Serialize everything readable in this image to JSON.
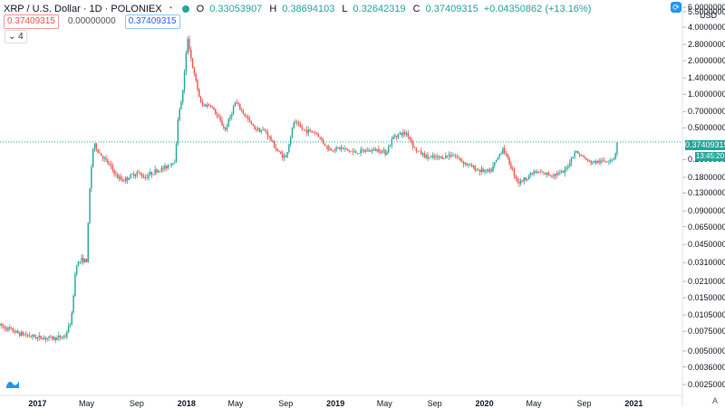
{
  "header": {
    "symbol": "XRP / U.S. Dollar · 1D · POLONIEX",
    "open_label": "O",
    "open": "0.33053907",
    "high_label": "H",
    "high": "0.38694103",
    "low_label": "L",
    "low": "0.32642319",
    "close_label": "C",
    "close": "0.37409315",
    "change": "+0.04350862 (+13.16%)",
    "bid": "0.37409315",
    "spread": "0.00000000",
    "ask": "0.37409315",
    "indicator_toggle": "⌄ 4"
  },
  "axis": {
    "currency": "USD",
    "y_ticks": [
      "6.00000000",
      "5.50000000",
      "4.00000000",
      "2.80000000",
      "2.00000000",
      "1.40000000",
      "1.00000000",
      "0.70000000",
      "0.50000000",
      "0.26000000",
      "0.18000000",
      "0.13000000",
      "0.09000000",
      "0.06500000",
      "0.04500000",
      "0.03100000",
      "0.02100000",
      "0.01500000",
      "0.01050000",
      "0.00750000",
      "0.00500000",
      "0.00360000",
      "0.00250000"
    ],
    "x_ticks": [
      {
        "label": "2017",
        "bold": true
      },
      {
        "label": "May",
        "bold": false
      },
      {
        "label": "Sep",
        "bold": false
      },
      {
        "label": "2018",
        "bold": true
      },
      {
        "label": "May",
        "bold": false
      },
      {
        "label": "Sep",
        "bold": false
      },
      {
        "label": "2019",
        "bold": true
      },
      {
        "label": "May",
        "bold": false
      },
      {
        "label": "Sep",
        "bold": false
      },
      {
        "label": "2020",
        "bold": true
      },
      {
        "label": "May",
        "bold": false
      },
      {
        "label": "Sep",
        "bold": false
      },
      {
        "label": "2021",
        "bold": true
      }
    ],
    "price_tag": "0.37409315",
    "time_tag": "13:45:20",
    "auto_label": "A"
  },
  "colors": {
    "up": "#26a69a",
    "down": "#ef5350",
    "last_line": "#26a69a",
    "accent": "#2196f3"
  },
  "chart_data": {
    "type": "line",
    "chart_style": "candlestick",
    "scale": "log",
    "ylim": [
      0.002,
      6.5
    ],
    "xlim": [
      "2016-10-01",
      "2021-04-30"
    ],
    "series": [
      {
        "x": [
          "2016-10-01",
          "2016-11-15",
          "2017-01-01",
          "2017-02-15",
          "2017-03-10",
          "2017-03-25",
          "2017-04-05",
          "2017-04-20",
          "2017-05-01",
          "2017-05-10",
          "2017-05-18",
          "2017-06-01",
          "2017-07-01",
          "2017-07-15",
          "2017-08-01",
          "2017-09-01",
          "2017-09-20",
          "2017-10-10",
          "2017-11-10",
          "2017-12-05",
          "2017-12-12",
          "2017-12-20",
          "2018-01-04",
          "2018-01-15",
          "2018-02-06",
          "2018-03-01",
          "2018-04-06",
          "2018-05-01",
          "2018-06-15",
          "2018-07-15",
          "2018-08-14",
          "2018-09-01",
          "2018-09-21",
          "2018-10-15",
          "2018-11-15",
          "2018-12-15",
          "2019-01-15",
          "2019-02-15",
          "2019-03-15",
          "2019-04-15",
          "2019-05-05",
          "2019-05-25",
          "2019-06-25",
          "2019-07-15",
          "2019-08-15",
          "2019-09-15",
          "2019-10-15",
          "2019-11-15",
          "2019-12-15",
          "2020-01-15",
          "2020-02-15",
          "2020-03-12",
          "2020-03-25",
          "2020-05-01",
          "2020-06-15",
          "2020-07-15",
          "2020-08-10",
          "2020-09-15",
          "2020-10-20",
          "2020-11-15",
          "2020-11-21"
        ],
        "y": [
          0.0085,
          0.0072,
          0.0066,
          0.0065,
          0.0068,
          0.0095,
          0.03,
          0.033,
          0.032,
          0.17,
          0.36,
          0.3,
          0.22,
          0.18,
          0.17,
          0.2,
          0.18,
          0.2,
          0.22,
          0.26,
          0.7,
          0.85,
          3.2,
          1.8,
          0.8,
          0.8,
          0.48,
          0.85,
          0.5,
          0.46,
          0.3,
          0.27,
          0.56,
          0.48,
          0.45,
          0.32,
          0.33,
          0.3,
          0.31,
          0.32,
          0.3,
          0.43,
          0.45,
          0.32,
          0.27,
          0.27,
          0.29,
          0.24,
          0.21,
          0.2,
          0.33,
          0.2,
          0.16,
          0.2,
          0.19,
          0.2,
          0.31,
          0.245,
          0.25,
          0.27,
          0.3741
        ]
      }
    ],
    "last_value": 0.37409315
  }
}
